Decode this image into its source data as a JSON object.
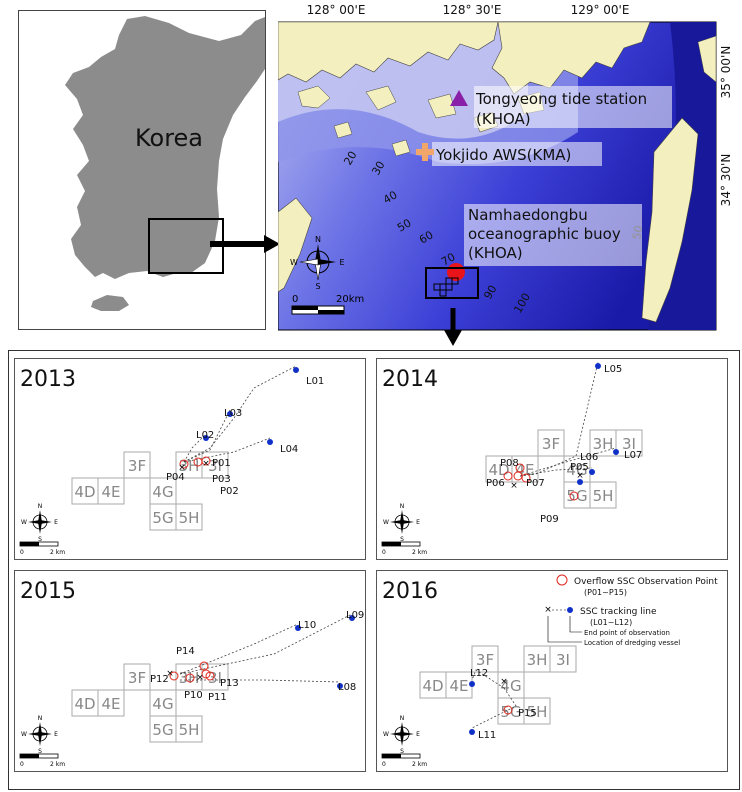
{
  "korea_map": {
    "country_label": "Korea"
  },
  "sea_map": {
    "lon_labels": [
      "128° 00'E",
      "128° 30'E",
      "129° 00'E"
    ],
    "lat_labels": [
      "35° 00'N",
      "34° 30'N"
    ],
    "depths": [
      "20",
      "30",
      "40",
      "50",
      "60",
      "70",
      "90",
      "100",
      "50"
    ],
    "stations": {
      "tide": [
        "Tongyeong tide station",
        "(KHOA)"
      ],
      "aws": "Yokjido AWS(KMA)",
      "buoy": [
        "Namhaedongbu",
        "oceanographic buoy",
        "(KHOA)"
      ]
    },
    "scale": {
      "start": "0",
      "end": "20km"
    },
    "compass": {
      "n": "N",
      "s": "S",
      "e": "E",
      "w": "W"
    }
  },
  "panel_common": {
    "blocks": [
      "3F",
      "3H",
      "3I",
      "4D",
      "4E",
      "4G",
      "5G",
      "5H"
    ],
    "scale": {
      "start": "0",
      "end": "2 km"
    },
    "compass": {
      "n": "N",
      "s": "S",
      "e": "E",
      "w": "W"
    }
  },
  "panels": [
    {
      "year": "2013",
      "lines": [
        "L01",
        "L02",
        "L03",
        "L04"
      ],
      "points": [
        "P01",
        "P02",
        "P03",
        "P04"
      ]
    },
    {
      "year": "2014",
      "lines": [
        "L05",
        "L06",
        "L07"
      ],
      "points": [
        "P05",
        "P06",
        "P07",
        "P08",
        "P09"
      ]
    },
    {
      "year": "2015",
      "lines": [
        "L08",
        "L09",
        "L10"
      ],
      "points": [
        "P10",
        "P11",
        "P12",
        "P13",
        "P14"
      ]
    },
    {
      "year": "2016",
      "lines": [
        "L11",
        "L12"
      ],
      "points": [
        "P15"
      ]
    }
  ],
  "legend": {
    "overflow": "Overflow SSC Observation Point",
    "overflow_range": "(P01~P15)",
    "tracking": "SSC tracking line",
    "tracking_range": "(L01~L12)",
    "end_point": "End point of observation",
    "vessel": "Location of dredging vessel"
  },
  "colors": {
    "land": "#8c8c8c",
    "sea_shallow": "#c7c9ee",
    "sea_deep": "#1c1cb0",
    "tide_marker": "#8a1fa8",
    "aws_marker": "#f2a66a",
    "buoy_marker": "#e8141a",
    "track_dot": "#1030c8",
    "obs_circle": "#e0261c"
  }
}
